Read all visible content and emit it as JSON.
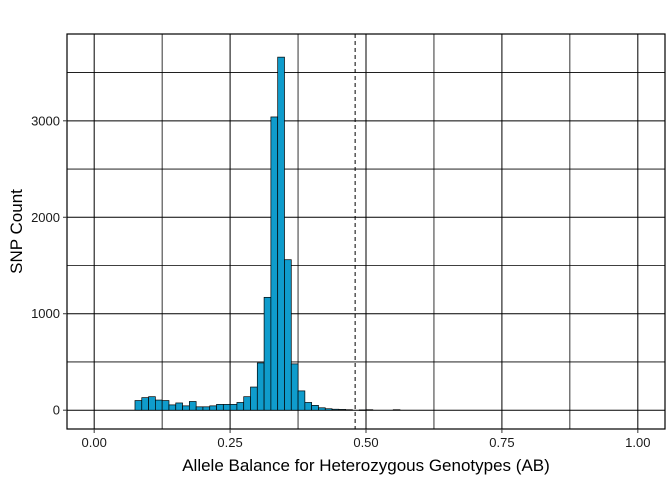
{
  "chart_data": {
    "type": "bar",
    "xlabel": "Allele Balance for Heterozygous Genotypes (AB)",
    "ylabel": "SNP Count",
    "xlim": [
      -0.05,
      1.05
    ],
    "ylim": [
      -195,
      3900
    ],
    "bin_width": 0.0125,
    "xticks": [
      0.0,
      0.25,
      0.5,
      0.75,
      1.0
    ],
    "xtick_labels": [
      "0.00",
      "0.25",
      "0.50",
      "0.75",
      "1.00"
    ],
    "xgrid_minor": [
      0.125,
      0.375,
      0.625,
      0.875
    ],
    "yticks": [
      0,
      1000,
      2000,
      3000
    ],
    "ytick_labels": [
      "0",
      "1000",
      "2000",
      "3000"
    ],
    "ygrid_minor": [
      500,
      1500,
      2500,
      3500
    ],
    "grid": true,
    "fill_color": "#0f9ccc",
    "edge_color": "#000000",
    "reference_line": {
      "x": 0.48,
      "style": "dashed"
    },
    "bins": [
      {
        "x": 0.0813,
        "y": 100
      },
      {
        "x": 0.0938,
        "y": 130
      },
      {
        "x": 0.1063,
        "y": 140
      },
      {
        "x": 0.1188,
        "y": 105
      },
      {
        "x": 0.1313,
        "y": 100
      },
      {
        "x": 0.1438,
        "y": 55
      },
      {
        "x": 0.1563,
        "y": 75
      },
      {
        "x": 0.1688,
        "y": 45
      },
      {
        "x": 0.1813,
        "y": 90
      },
      {
        "x": 0.1938,
        "y": 35
      },
      {
        "x": 0.2063,
        "y": 35
      },
      {
        "x": 0.2188,
        "y": 45
      },
      {
        "x": 0.2313,
        "y": 60
      },
      {
        "x": 0.2438,
        "y": 60
      },
      {
        "x": 0.2563,
        "y": 60
      },
      {
        "x": 0.2688,
        "y": 80
      },
      {
        "x": 0.2813,
        "y": 140
      },
      {
        "x": 0.2938,
        "y": 240
      },
      {
        "x": 0.3063,
        "y": 490
      },
      {
        "x": 0.3188,
        "y": 1170
      },
      {
        "x": 0.3313,
        "y": 3040
      },
      {
        "x": 0.3438,
        "y": 3660
      },
      {
        "x": 0.3563,
        "y": 1560
      },
      {
        "x": 0.3688,
        "y": 480
      },
      {
        "x": 0.3813,
        "y": 200
      },
      {
        "x": 0.3938,
        "y": 80
      },
      {
        "x": 0.4063,
        "y": 50
      },
      {
        "x": 0.4188,
        "y": 25
      },
      {
        "x": 0.4313,
        "y": 15
      },
      {
        "x": 0.4438,
        "y": 10
      },
      {
        "x": 0.4563,
        "y": 8
      },
      {
        "x": 0.4688,
        "y": 5
      },
      {
        "x": 0.4938,
        "y": 3
      },
      {
        "x": 0.5063,
        "y": 5
      },
      {
        "x": 0.5563,
        "y": 5
      }
    ]
  }
}
